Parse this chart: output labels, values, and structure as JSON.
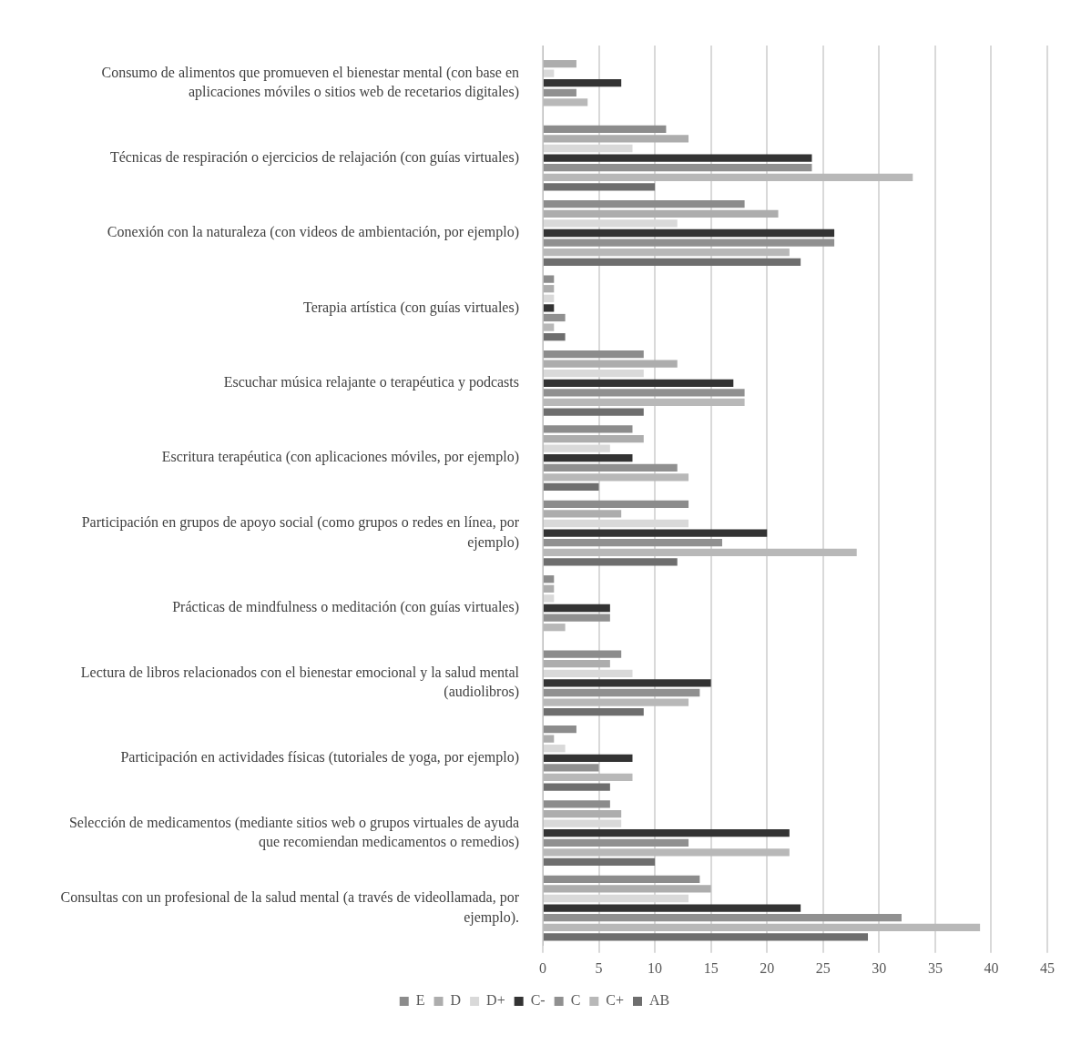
{
  "chart_data": {
    "type": "bar",
    "orientation": "horizontal",
    "categories": [
      "Consumo de alimentos que promueven el bienestar mental (con base en aplicaciones móviles o sitios web de recetarios digitales)",
      "Técnicas de respiración o ejercicios de relajación (con guías virtuales)",
      "Conexión con la naturaleza (con videos de ambientación, por ejemplo)",
      "Terapia artística (con guías virtuales)",
      "Escuchar música relajante o terapéutica y podcasts",
      "Escritura terapéutica (con aplicaciones móviles, por ejemplo)",
      "Participación en grupos de apoyo social (como grupos o redes en línea, por ejemplo)",
      "Prácticas de mindfulness o meditación (con guías virtuales)",
      "Lectura de libros relacionados con el bienestar emocional y la salud mental (audiolibros)",
      "Participación en actividades físicas (tutoriales de yoga, por ejemplo)",
      "Selección de medicamentos (mediante sitios web o grupos virtuales de ayuda que recomiendan medicamentos o remedios)",
      "Consultas con un profesional de la salud mental (a través de videollamada, por ejemplo)."
    ],
    "series": [
      {
        "name": "E",
        "color": "#8c8c8c",
        "values": [
          0,
          11,
          18,
          1,
          9,
          8,
          13,
          1,
          7,
          3,
          6,
          14
        ]
      },
      {
        "name": "D",
        "color": "#adadad",
        "values": [
          3,
          13,
          21,
          1,
          12,
          9,
          7,
          1,
          6,
          1,
          7,
          15
        ]
      },
      {
        "name": "D+",
        "color": "#d9d9d9",
        "values": [
          1,
          8,
          12,
          1,
          9,
          6,
          13,
          1,
          8,
          2,
          7,
          13
        ]
      },
      {
        "name": "C-",
        "color": "#333333",
        "values": [
          7,
          24,
          26,
          1,
          17,
          8,
          20,
          6,
          15,
          8,
          22,
          23
        ]
      },
      {
        "name": "C",
        "color": "#909090",
        "values": [
          3,
          24,
          26,
          2,
          18,
          12,
          16,
          6,
          14,
          5,
          13,
          32
        ]
      },
      {
        "name": "C+",
        "color": "#b8b8b8",
        "values": [
          4,
          33,
          22,
          1,
          18,
          13,
          28,
          2,
          13,
          8,
          22,
          39
        ]
      },
      {
        "name": "AB",
        "color": "#6e6e6e",
        "values": [
          0,
          10,
          23,
          2,
          9,
          5,
          12,
          0,
          9,
          6,
          10,
          29
        ]
      }
    ],
    "xlim": [
      0,
      45
    ],
    "xticks": [
      0,
      5,
      10,
      15,
      20,
      25,
      30,
      35,
      40,
      45
    ],
    "grid": "x",
    "legend": "bottom"
  }
}
